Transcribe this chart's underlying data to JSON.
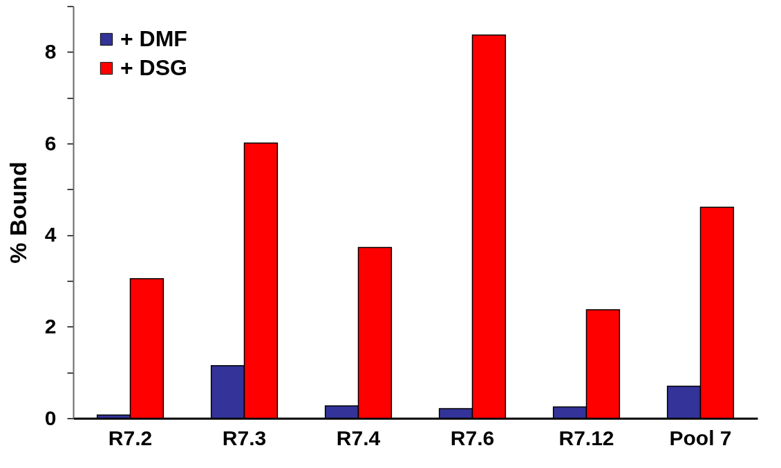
{
  "chart_data": {
    "type": "bar",
    "ylabel": "% Bound",
    "categories": [
      "R7.2",
      "R7.3",
      "R7.4",
      "R7.6",
      "R7.12",
      "Pool 7"
    ],
    "series": [
      {
        "name": "+ DMF",
        "color": "#333399",
        "values": [
          0.07,
          1.15,
          0.27,
          0.21,
          0.25,
          0.7
        ]
      },
      {
        "name": "+ DSG",
        "color": "#ff0000",
        "values": [
          3.05,
          6.01,
          3.73,
          8.37,
          2.37,
          4.61
        ]
      }
    ],
    "ylim": [
      0,
      9
    ],
    "yticks": [
      0,
      {
        "value": 1,
        "label": null
      },
      2,
      {
        "value": 3,
        "label": null
      },
      4,
      {
        "value": 5,
        "label": null
      },
      6,
      {
        "value": 7,
        "label": null
      },
      8,
      {
        "value": 9,
        "label": null
      }
    ],
    "grid": false,
    "legend": "top left"
  }
}
